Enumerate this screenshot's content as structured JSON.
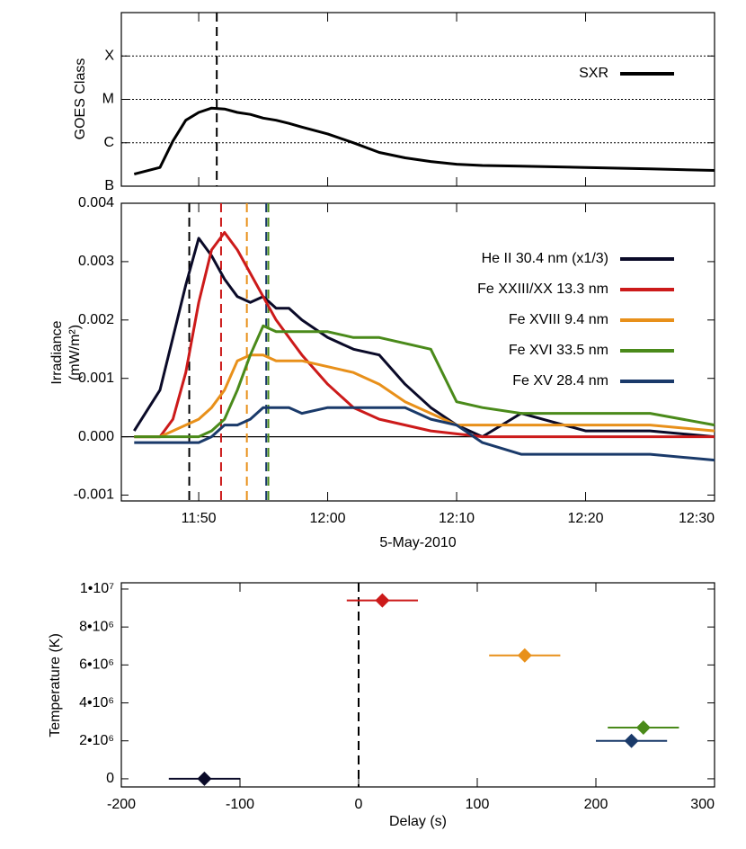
{
  "chart_data": [
    {
      "type": "line",
      "ylabel": "GOES Class",
      "log_y": true,
      "x": [
        "11:45",
        "11:47",
        "11:48",
        "11:49",
        "11:50",
        "11:51",
        "11:52",
        "11:53",
        "11:54",
        "11:55",
        "11:56",
        "11:57",
        "11:58",
        "12:00",
        "12:02",
        "12:04",
        "12:06",
        "12:08",
        "12:10",
        "12:12",
        "12:15",
        "12:20",
        "12:25",
        "12:30"
      ],
      "xlim": [
        "11:44",
        "12:30"
      ],
      "ylim": [
        1e-07,
        0.001
      ],
      "yticks": [
        {
          "value": 1e-07,
          "label": "B"
        },
        {
          "value": 1e-06,
          "label": "C"
        },
        {
          "value": 1e-05,
          "label": "M"
        },
        {
          "value": 0.0001,
          "label": "X"
        }
      ],
      "grid": true,
      "legend": "upper right",
      "vlines": [
        {
          "x": "11:51:24",
          "color": "#000000"
        }
      ],
      "series": [
        {
          "name": "SXR",
          "color": "#000000",
          "values": [
            1.9e-07,
            2.7e-07,
            1.1e-06,
            3.3e-06,
            5e-06,
            6.3e-06,
            6e-06,
            5e-06,
            4.5e-06,
            3.7e-06,
            3.3e-06,
            2.8e-06,
            2.3e-06,
            1.6e-06,
            1e-06,
            6e-07,
            4.5e-07,
            3.7e-07,
            3.2e-07,
            3e-07,
            2.9e-07,
            2.7e-07,
            2.5e-07,
            2.3e-07
          ]
        }
      ]
    },
    {
      "type": "line",
      "ylabel": [
        "Irradiance",
        "(mW/m²)"
      ],
      "xlabel": "5-May-2010",
      "x": [
        "11:45",
        "11:47",
        "11:48",
        "11:49",
        "11:50",
        "11:51",
        "11:52",
        "11:53",
        "11:54",
        "11:55",
        "11:56",
        "11:57",
        "11:58",
        "12:00",
        "12:02",
        "12:04",
        "12:06",
        "12:08",
        "12:10",
        "12:12",
        "12:15",
        "12:20",
        "12:25",
        "12:30"
      ],
      "xlim": [
        "11:44",
        "12:30"
      ],
      "xticks": [
        "11:50",
        "12:00",
        "12:10",
        "12:20",
        "12:30"
      ],
      "ylim": [
        -0.0011,
        0.004
      ],
      "yticks": [
        -0.001,
        {
          "value": 0,
          "label": "0.000"
        },
        0.001,
        0.002,
        0.003,
        0.004
      ],
      "legend": "upper right",
      "vlines": [
        {
          "x": "11:49:16",
          "color": "#000000"
        },
        {
          "x": "11:51:44",
          "color": "#cc1a1a"
        },
        {
          "x": "11:53:44",
          "color": "#e8901a"
        },
        {
          "x": "11:55:14",
          "color": "#1a3a6a"
        },
        {
          "x": "11:55:24",
          "color": "#4a8a1a"
        }
      ],
      "series": [
        {
          "name": "He II 30.4 nm (x1/3)",
          "color": "#0a0a28",
          "values": [
            0.0001,
            0.0008,
            0.0017,
            0.0026,
            0.0034,
            0.0031,
            0.0027,
            0.0024,
            0.0023,
            0.0024,
            0.0022,
            0.0022,
            0.002,
            0.0017,
            0.0015,
            0.0014,
            0.0009,
            0.0005,
            0.0002,
            0.0,
            0.0004,
            0.0001,
            0.0001,
            0.0
          ]
        },
        {
          "name": "Fe XXIII/XX 13.3 nm",
          "color": "#cc1a1a",
          "values": [
            0.0,
            0.0,
            0.0003,
            0.0011,
            0.0023,
            0.0032,
            0.0035,
            0.0032,
            0.0028,
            0.0024,
            0.002,
            0.0017,
            0.0014,
            0.0009,
            0.0005,
            0.0003,
            0.0002,
            0.0001,
            5e-05,
            0.0,
            0.0,
            0.0,
            0.0,
            0.0
          ]
        },
        {
          "name": "Fe XVIII 9.4 nm",
          "color": "#e8901a",
          "values": [
            0.0,
            0.0,
            0.0001,
            0.0002,
            0.0003,
            0.0005,
            0.0008,
            0.0013,
            0.0014,
            0.0014,
            0.0013,
            0.0013,
            0.0013,
            0.0012,
            0.0011,
            0.0009,
            0.0006,
            0.0004,
            0.0002,
            0.0002,
            0.0002,
            0.0002,
            0.0002,
            0.0001
          ]
        },
        {
          "name": "Fe XVI 33.5 nm",
          "color": "#4a8a1a",
          "values": [
            0.0,
            0.0,
            0.0,
            0.0,
            0.0,
            0.0001,
            0.0003,
            0.0008,
            0.0014,
            0.0019,
            0.0018,
            0.0018,
            0.0018,
            0.0018,
            0.0017,
            0.0017,
            0.0016,
            0.0015,
            0.0006,
            0.0005,
            0.0004,
            0.0004,
            0.0004,
            0.0002
          ]
        },
        {
          "name": "Fe XV 28.4 nm",
          "color": "#1a3a6a",
          "values": [
            -0.0001,
            -0.0001,
            -0.0001,
            -0.0001,
            -0.0001,
            0.0,
            0.0002,
            0.0002,
            0.0003,
            0.0005,
            0.0005,
            0.0005,
            0.0004,
            0.0005,
            0.0005,
            0.0005,
            0.0005,
            0.0003,
            0.0002,
            -0.0001,
            -0.0003,
            -0.0003,
            -0.0003,
            -0.0004
          ]
        }
      ]
    },
    {
      "type": "scatter",
      "xlabel": "Delay (s)",
      "ylabel": "Temperature (K)",
      "xlim": [
        -200,
        300
      ],
      "xticks": [
        -200,
        -100,
        0,
        100,
        200,
        300
      ],
      "ylim": [
        -430000,
        10330000
      ],
      "yticks": [
        0,
        {
          "value": 2000000,
          "label": "2•10⁶"
        },
        {
          "value": 4000000,
          "label": "4•10⁶"
        },
        {
          "value": 6000000,
          "label": "6•10⁶"
        },
        {
          "value": 8000000,
          "label": "8•10⁶"
        },
        {
          "value": 10000000,
          "label": "1•10⁷"
        }
      ],
      "vlines": [
        {
          "x": 0,
          "color": "#000000"
        }
      ],
      "x": [
        -130,
        20,
        140,
        240,
        230
      ],
      "values": [
        0,
        9400000,
        6500000,
        2700000,
        2000000
      ],
      "xerr": [
        30,
        30,
        30,
        30,
        30
      ],
      "colors": [
        "#0a0a28",
        "#cc1a1a",
        "#e8901a",
        "#4a8a1a",
        "#1a3a6a"
      ]
    }
  ]
}
